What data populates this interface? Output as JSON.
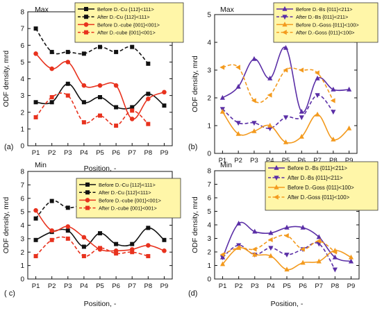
{
  "colors": {
    "black": "#111111",
    "red": "#e8321e",
    "purple": "#5a2ea6",
    "orange": "#f39a1e",
    "legend_bg": "#fff6a8"
  },
  "chart_data": [
    {
      "panel_label": "(a)",
      "title": "Max",
      "type": "line",
      "xlabel": "Position, -",
      "ylabel": "ODF density, mrd",
      "ylim": [
        0,
        8
      ],
      "yticks": [
        0,
        1,
        2,
        3,
        4,
        5,
        6,
        7,
        8
      ],
      "categories": [
        "P1",
        "P2",
        "P3",
        "P4",
        "P5",
        "P6",
        "P7",
        "P8",
        "P9"
      ],
      "legend_position": "top-right",
      "series": [
        {
          "name": "Before D.-Cu {112}<111>",
          "color": "#111111",
          "dashed": false,
          "marker": "square",
          "values": [
            2.6,
            2.6,
            3.7,
            2.6,
            2.9,
            2.3,
            2.3,
            3.1,
            2.4
          ]
        },
        {
          "name": "After D.-Cu {112}<111>",
          "color": "#111111",
          "dashed": true,
          "marker": "square",
          "values": [
            7.0,
            5.6,
            5.6,
            5.5,
            5.9,
            5.6,
            5.9,
            4.9,
            null
          ]
        },
        {
          "name": "Before D.-cube {001}<001>",
          "color": "#e8321e",
          "dashed": false,
          "marker": "circle",
          "values": [
            5.5,
            4.6,
            5.0,
            3.6,
            3.6,
            3.6,
            1.6,
            2.8,
            3.2
          ]
        },
        {
          "name": "After D.-cube {001}<001>",
          "color": "#e8321e",
          "dashed": true,
          "marker": "square",
          "values": [
            1.7,
            2.9,
            3.0,
            1.4,
            1.8,
            1.2,
            2.1,
            1.3,
            null
          ]
        }
      ]
    },
    {
      "panel_label": "(b)",
      "title": "Max",
      "type": "line",
      "xlabel": "Position, -",
      "ylabel": "ODF density, mrd",
      "ylim": [
        0,
        5
      ],
      "yticks": [
        0,
        1,
        2,
        3,
        4,
        5
      ],
      "categories": [
        "P1",
        "P2",
        "P3",
        "P4",
        "P5",
        "P6",
        "P7",
        "P8",
        "P9"
      ],
      "legend_position": "top-right",
      "series": [
        {
          "name": "Before D.-Bs {011}<211>",
          "color": "#5a2ea6",
          "dashed": false,
          "marker": "triangle",
          "values": [
            2.0,
            2.4,
            3.4,
            2.7,
            3.8,
            1.5,
            2.7,
            2.3,
            2.3
          ]
        },
        {
          "name": "After D.-Bs {011}<211>",
          "color": "#5a2ea6",
          "dashed": true,
          "marker": "triangle-down",
          "values": [
            1.6,
            1.1,
            1.1,
            0.9,
            1.3,
            1.3,
            2.1,
            1.5,
            null
          ]
        },
        {
          "name": "Before D.-Goss {011}<100>",
          "color": "#f39a1e",
          "dashed": false,
          "marker": "triangle",
          "values": [
            1.5,
            0.7,
            0.8,
            1.0,
            0.4,
            0.6,
            1.4,
            0.5,
            0.9
          ]
        },
        {
          "name": "After D.-Goss {011}<100>",
          "color": "#f39a1e",
          "dashed": true,
          "marker": "triangle-left",
          "values": [
            3.1,
            3.1,
            1.9,
            2.1,
            3.0,
            3.0,
            2.9,
            1.9,
            null
          ]
        }
      ]
    },
    {
      "panel_label": "( c)",
      "title": "Min",
      "type": "line",
      "xlabel": "Position, -",
      "ylabel": "ODF density, mrd",
      "ylim": [
        0,
        8
      ],
      "yticks": [
        0,
        1,
        2,
        3,
        4,
        5,
        6,
        7,
        8
      ],
      "categories": [
        "P1",
        "P2",
        "P3",
        "P4",
        "P5",
        "P6",
        "P7",
        "P8",
        "P9"
      ],
      "legend_position": "top-right",
      "series": [
        {
          "name": "Before D.-Cu {112}<111>",
          "color": "#111111",
          "dashed": false,
          "marker": "square",
          "values": [
            2.9,
            3.5,
            3.6,
            2.4,
            3.4,
            2.6,
            2.6,
            3.8,
            2.9
          ]
        },
        {
          "name": "After D.-Cu {112}<111>",
          "color": "#111111",
          "dashed": true,
          "marker": "square",
          "values": [
            4.5,
            5.8,
            5.3,
            5.6,
            6.1,
            5.6,
            5.4,
            4.8,
            null
          ]
        },
        {
          "name": "Before D.-cube {001}<001>",
          "color": "#e8321e",
          "dashed": false,
          "marker": "circle",
          "values": [
            5.1,
            3.6,
            3.9,
            3.1,
            2.2,
            2.1,
            2.2,
            2.5,
            2.1
          ]
        },
        {
          "name": "After D.-cube {001}<001>",
          "color": "#e8321e",
          "dashed": true,
          "marker": "square",
          "values": [
            1.7,
            2.9,
            3.0,
            1.7,
            2.3,
            1.9,
            2.0,
            1.7,
            null
          ]
        }
      ]
    },
    {
      "panel_label": "(d)",
      "title": "Min",
      "type": "line",
      "xlabel": "Position, -",
      "ylabel": "ODF density, mrd",
      "ylim": [
        0,
        8
      ],
      "yticks": [
        0,
        1,
        2,
        3,
        4,
        5,
        6,
        7,
        8
      ],
      "categories": [
        "P1",
        "P2",
        "P3",
        "P4",
        "P5",
        "P6",
        "P7",
        "P8",
        "P9"
      ],
      "legend_position": "top-right",
      "series": [
        {
          "name": "Before D.-Bs {011}<211>",
          "color": "#5a2ea6",
          "dashed": false,
          "marker": "triangle",
          "values": [
            1.6,
            4.1,
            3.5,
            3.4,
            3.8,
            3.8,
            3.1,
            1.6,
            1.3
          ]
        },
        {
          "name": "After D.-Bs {011}<211>",
          "color": "#5a2ea6",
          "dashed": true,
          "marker": "triangle-down",
          "values": [
            1.6,
            2.5,
            1.8,
            2.3,
            1.8,
            2.2,
            2.6,
            0.7,
            null
          ]
        },
        {
          "name": "Before D.-Goss {011}<100>",
          "color": "#f39a1e",
          "dashed": false,
          "marker": "triangle",
          "values": [
            1.1,
            2.3,
            1.8,
            1.7,
            0.7,
            1.2,
            1.3,
            2.1,
            1.6
          ]
        },
        {
          "name": "After D.-Goss {011}<100>",
          "color": "#f39a1e",
          "dashed": true,
          "marker": "triangle-left",
          "values": [
            1.8,
            2.3,
            2.2,
            2.9,
            3.2,
            2.2,
            2.8,
            2.0,
            null
          ]
        }
      ]
    }
  ]
}
